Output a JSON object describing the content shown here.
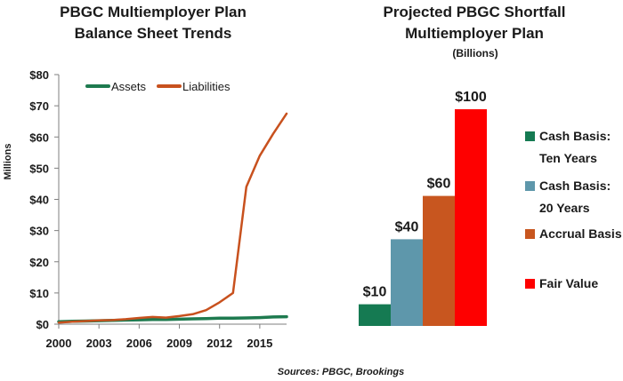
{
  "chart_data": [
    {
      "type": "line",
      "title_lines": [
        "PBGC Multiemployer Plan",
        "Balance Sheet Trends"
      ],
      "ylabel": "Millions",
      "ylim": [
        0,
        80
      ],
      "xlim": [
        2000,
        2017
      ],
      "yticks": [
        "$0",
        "$10",
        "$20",
        "$30",
        "$40",
        "$50",
        "$60",
        "$70",
        "$80"
      ],
      "xticks": [
        "2000",
        "2003",
        "2006",
        "2009",
        "2012",
        "2015"
      ],
      "grid": false,
      "legend_position": "top",
      "series": [
        {
          "name": "Assets",
          "color": "#1e7a4f",
          "x": [
            2000,
            2001,
            2002,
            2003,
            2004,
            2005,
            2006,
            2007,
            2008,
            2009,
            2010,
            2011,
            2012,
            2013,
            2014,
            2015,
            2016,
            2017
          ],
          "y": [
            0.8,
            0.9,
            1.0,
            1.1,
            1.2,
            1.3,
            1.4,
            1.5,
            1.5,
            1.6,
            1.7,
            1.8,
            1.9,
            1.9,
            2.0,
            2.1,
            2.3,
            2.4
          ]
        },
        {
          "name": "Liabilities",
          "color": "#c8511e",
          "x": [
            2000,
            2001,
            2002,
            2003,
            2004,
            2005,
            2006,
            2007,
            2008,
            2009,
            2010,
            2011,
            2012,
            2013,
            2014,
            2015,
            2016,
            2017
          ],
          "y": [
            0.5,
            0.8,
            1.0,
            1.2,
            1.3,
            1.6,
            2.0,
            2.3,
            2.1,
            2.6,
            3.2,
            4.5,
            7.0,
            10.0,
            44.0,
            54.0,
            61.0,
            67.5
          ]
        }
      ]
    },
    {
      "type": "bar",
      "title_lines": [
        "Projected PBGC Shortfall",
        "Multiemployer Plan"
      ],
      "subtitle": "(Billions)",
      "categories": [
        "Cash Basis: Ten Years",
        "Cash Basis: 20 Years",
        "Accrual Basis",
        "Fair Value"
      ],
      "legend_lines": [
        [
          "Cash Basis:",
          "Ten Years"
        ],
        [
          "Cash Basis:",
          "20 Years"
        ],
        [
          "Accrual Basis"
        ],
        [
          "Fair Value"
        ]
      ],
      "values": [
        10,
        40,
        60,
        100
      ],
      "value_labels": [
        "$10",
        "$40",
        "$60",
        "$100"
      ],
      "colors": [
        "#157a52",
        "#5e97ab",
        "#c8561f",
        "#fe0000"
      ],
      "legend_position": "right"
    }
  ],
  "source": "Sources: PBGC, Brookings"
}
